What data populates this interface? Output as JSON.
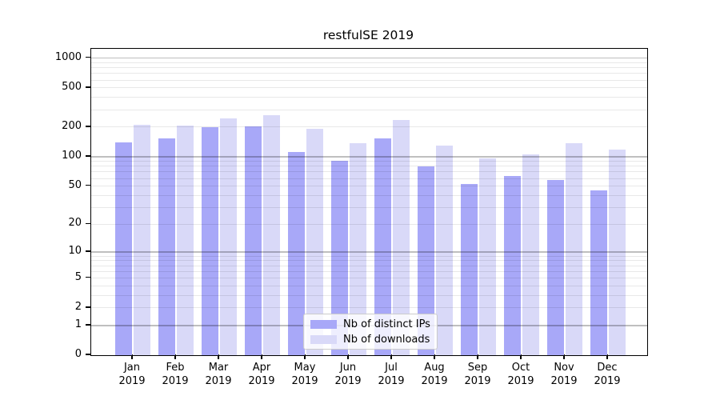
{
  "title": "restfulSE 2019",
  "chart_data": {
    "type": "bar",
    "title": "restfulSE 2019",
    "categories": [
      "Jan",
      "Feb",
      "Mar",
      "Apr",
      "May",
      "Jun",
      "Jul",
      "Aug",
      "Sep",
      "Oct",
      "Nov",
      "Dec"
    ],
    "year_label": "2019",
    "series": [
      {
        "name": "Nb of distinct IPs",
        "color": "#a8a8f8",
        "values": [
          140,
          155,
          199,
          203,
          112,
          91,
          155,
          80,
          53,
          64,
          58,
          45
        ]
      },
      {
        "name": "Nb of downloads",
        "color": "#d9d9f8",
        "values": [
          211,
          206,
          246,
          264,
          192,
          138,
          237,
          130,
          97,
          106,
          138,
          119
        ]
      }
    ],
    "y_scale": "log1p",
    "y_ticks": [
      0,
      1,
      2,
      5,
      10,
      20,
      50,
      100,
      200,
      500,
      1000
    ],
    "ylim": [
      0,
      1240
    ],
    "grid": true,
    "legend_position": "lower center",
    "colors": {
      "major_grid": "rgba(0,0,0,0.25)",
      "minor_grid": "rgba(0,0,0,0.09)",
      "spine": "#000000",
      "background": "#ffffff"
    }
  }
}
